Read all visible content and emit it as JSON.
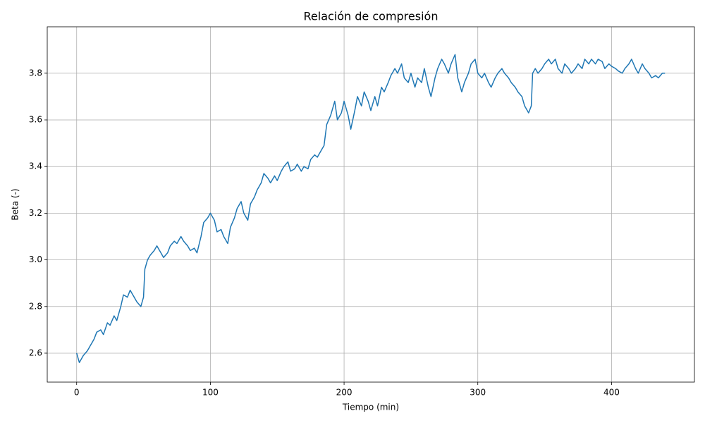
{
  "chart_data": {
    "type": "line",
    "title": "Relación de compresión",
    "xlabel": "Tiempo (min)",
    "ylabel": "Beta (-)",
    "color": "#1f77b4",
    "grid": true,
    "xlim": [
      -22,
      462
    ],
    "ylim": [
      2.476,
      3.999
    ],
    "xticks": [
      0,
      100,
      200,
      300,
      400
    ],
    "yticks": [
      2.6,
      2.8,
      {
        "value": 3.0,
        "label": "3.0"
      },
      3.2,
      3.4,
      3.6,
      3.8
    ],
    "x": [
      0,
      2,
      5,
      8,
      10,
      13,
      15,
      18,
      20,
      23,
      25,
      28,
      30,
      33,
      35,
      38,
      40,
      43,
      45,
      48,
      50,
      51,
      53,
      55,
      58,
      60,
      63,
      65,
      68,
      70,
      73,
      75,
      78,
      80,
      83,
      85,
      88,
      90,
      93,
      95,
      98,
      100,
      103,
      105,
      108,
      110,
      113,
      115,
      118,
      120,
      123,
      125,
      128,
      130,
      133,
      135,
      138,
      140,
      143,
      145,
      148,
      150,
      153,
      155,
      158,
      160,
      163,
      165,
      168,
      170,
      173,
      175,
      178,
      180,
      183,
      185,
      187,
      190,
      193,
      195,
      198,
      200,
      203,
      205,
      208,
      210,
      213,
      215,
      218,
      220,
      223,
      225,
      228,
      230,
      233,
      235,
      238,
      240,
      243,
      245,
      248,
      250,
      253,
      255,
      258,
      260,
      263,
      265,
      268,
      270,
      273,
      275,
      278,
      280,
      283,
      285,
      288,
      290,
      293,
      295,
      298,
      300,
      303,
      305,
      308,
      310,
      313,
      315,
      318,
      320,
      323,
      325,
      328,
      330,
      333,
      335,
      338,
      340,
      341,
      343,
      345,
      348,
      350,
      353,
      355,
      358,
      360,
      363,
      365,
      368,
      370,
      373,
      375,
      378,
      380,
      383,
      385,
      388,
      390,
      393,
      395,
      398,
      400,
      403,
      405,
      408,
      410,
      413,
      415,
      418,
      420,
      423,
      425,
      428,
      430,
      433,
      435,
      438,
      440
    ],
    "values": [
      2.6,
      2.56,
      2.59,
      2.61,
      2.63,
      2.66,
      2.69,
      2.7,
      2.68,
      2.73,
      2.72,
      2.76,
      2.74,
      2.8,
      2.85,
      2.84,
      2.87,
      2.84,
      2.82,
      2.8,
      2.84,
      2.96,
      3.0,
      3.02,
      3.04,
      3.06,
      3.03,
      3.01,
      3.03,
      3.06,
      3.08,
      3.07,
      3.1,
      3.08,
      3.06,
      3.04,
      3.05,
      3.03,
      3.1,
      3.16,
      3.18,
      3.2,
      3.17,
      3.12,
      3.13,
      3.1,
      3.07,
      3.14,
      3.18,
      3.22,
      3.25,
      3.2,
      3.17,
      3.24,
      3.27,
      3.3,
      3.33,
      3.37,
      3.35,
      3.33,
      3.36,
      3.34,
      3.38,
      3.4,
      3.42,
      3.38,
      3.39,
      3.41,
      3.38,
      3.4,
      3.39,
      3.43,
      3.45,
      3.44,
      3.47,
      3.49,
      3.58,
      3.62,
      3.68,
      3.6,
      3.63,
      3.68,
      3.62,
      3.56,
      3.64,
      3.7,
      3.66,
      3.72,
      3.68,
      3.64,
      3.7,
      3.66,
      3.74,
      3.72,
      3.76,
      3.79,
      3.82,
      3.8,
      3.84,
      3.78,
      3.76,
      3.8,
      3.74,
      3.78,
      3.76,
      3.82,
      3.74,
      3.7,
      3.78,
      3.82,
      3.86,
      3.84,
      3.8,
      3.84,
      3.88,
      3.78,
      3.72,
      3.76,
      3.8,
      3.84,
      3.86,
      3.8,
      3.78,
      3.8,
      3.76,
      3.74,
      3.78,
      3.8,
      3.82,
      3.8,
      3.78,
      3.76,
      3.74,
      3.72,
      3.7,
      3.66,
      3.63,
      3.66,
      3.8,
      3.82,
      3.8,
      3.82,
      3.84,
      3.86,
      3.84,
      3.86,
      3.82,
      3.8,
      3.84,
      3.82,
      3.8,
      3.82,
      3.84,
      3.82,
      3.86,
      3.84,
      3.86,
      3.84,
      3.86,
      3.85,
      3.82,
      3.84,
      3.83,
      3.82,
      3.81,
      3.8,
      3.82,
      3.84,
      3.86,
      3.82,
      3.8,
      3.84,
      3.82,
      3.8,
      3.78,
      3.79,
      3.78,
      3.8,
      3.8
    ]
  }
}
